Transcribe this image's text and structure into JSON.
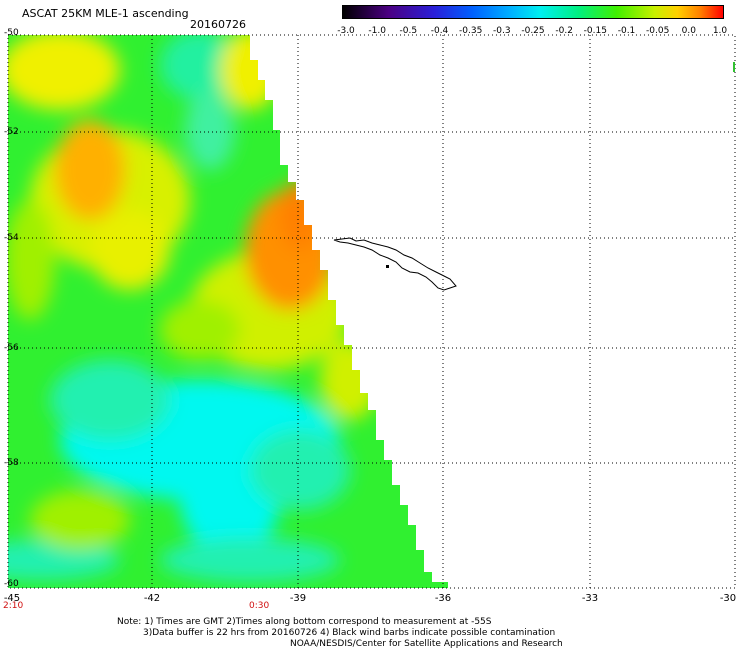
{
  "header": {
    "title": "ASCAT 25KM MLE-1 ascending",
    "date": "20160726"
  },
  "colorbar": {
    "labels": [
      "-3.0",
      "-1.0",
      "-0.5",
      "-0.4",
      "-0.35",
      "-0.3",
      "-0.25",
      "-0.2",
      "-0.15",
      "-0.1",
      "-0.05",
      "0.0",
      "1.0"
    ],
    "colors": [
      "#000000",
      "#4b0082",
      "#2a1fd9",
      "#0060ff",
      "#00b0ff",
      "#00f0f0",
      "#00f080",
      "#40f000",
      "#c8f000",
      "#ffd000",
      "#ff8000",
      "#ff0000"
    ]
  },
  "axes": {
    "lat_labels": [
      "-50",
      "-52",
      "-54",
      "-56",
      "-58",
      "-60"
    ],
    "lon_labels": [
      "-45",
      "-42",
      "-39",
      "-36",
      "-33",
      "-30"
    ],
    "time_labels": [
      "2:10",
      "0:30"
    ]
  },
  "notes": {
    "line1": "Note: 1) Times are GMT 2)Times along bottom correspond to measurement at -55S",
    "line2": "3)Data buffer is 22 hrs from 20160726 4) Black wind barbs indicate possible contamination",
    "line3": "NOAA/NESDIS/Center for Satellite Applications and Research"
  },
  "palette": {
    "orange": "#ff8a00",
    "yellow": "#f0f000",
    "lime": "#a0f000",
    "green": "#30f030",
    "cyan": "#00f8f0",
    "seafoam": "#20f0a0",
    "time_label_red": "#d01010"
  }
}
